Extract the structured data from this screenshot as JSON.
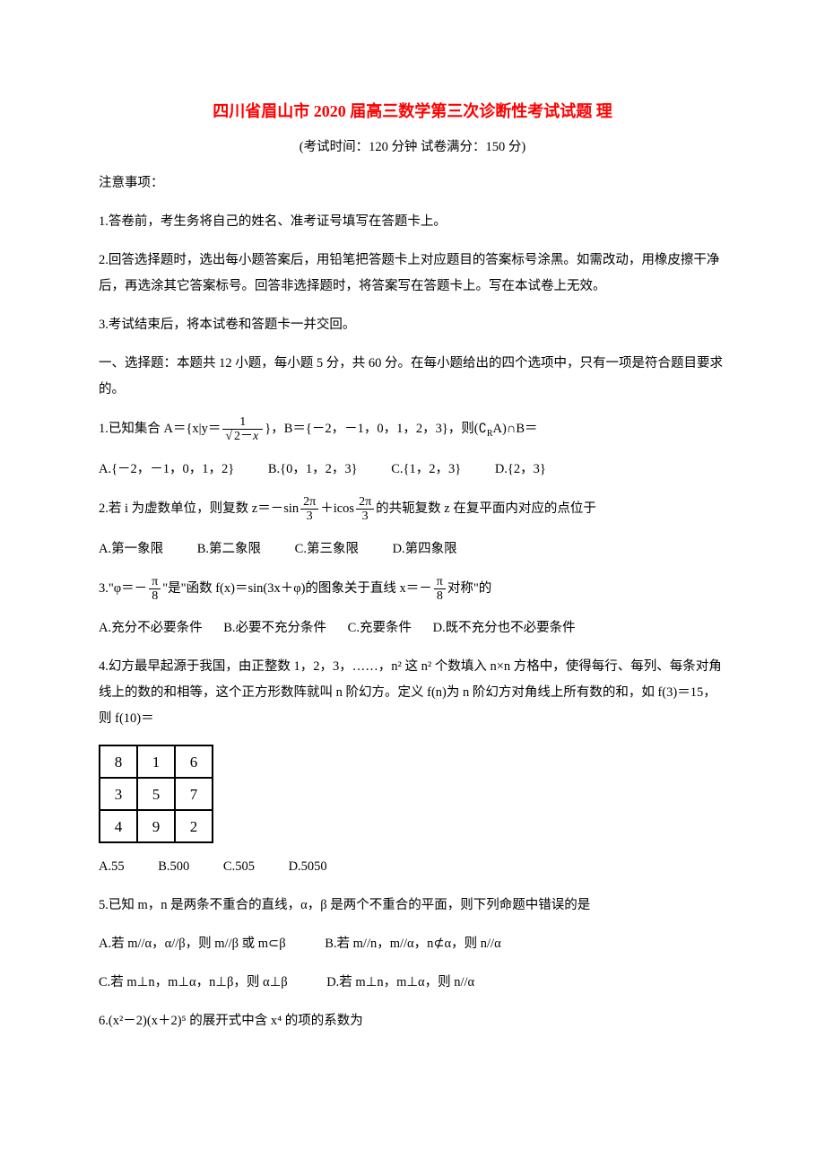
{
  "title": "四川省眉山市 2020 届高三数学第三次诊断性考试试题 理",
  "subtitle": "(考试时间：120 分钟  试卷满分：150 分)",
  "notice_header": "注意事项：",
  "notice1": "1.答卷前，考生务将自己的姓名、准考证号填写在答题卡上。",
  "notice2": "2.回答选择题时，选出每小题答案后，用铅笔把答题卡上对应题目的答案标号涂黑。如需改动，用橡皮擦干净后，再选涂其它答案标号。回答非选择题时，将答案写在答题卡上。写在本试卷上无效。",
  "notice3": "3.考试结束后，将本试卷和答题卡一并交回。",
  "section1": "一、选择题：本题共 12 小题，每小题 5 分，共 60 分。在每小题给出的四个选项中，只有一项是符合题目要求的。",
  "q1": {
    "stem_pre": "1.已知集合 A＝{x|y＝",
    "frac_num": "1",
    "frac_den_pre": "2－",
    "frac_den_var": "x",
    "stem_post": "}，B＝{－2，－1，0，1，2，3}，则(",
    "comp": "∁",
    "comp_sub": "R",
    "stem_post2": "A)∩B＝",
    "A": "A.{－2，－1，0，1，2}",
    "B": "B.{0，1，2，3}",
    "C": "C.{1，2，3}",
    "D": "D.{2，3}"
  },
  "q2": {
    "stem_pre": "2.若 i 为虚数单位，则复数 z＝－sin",
    "f1n": "2π",
    "f1d": "3",
    "mid": "＋icos",
    "f2n": "2π",
    "f2d": "3",
    "stem_post": "的共轭复数 z 在复平面内对应的点位于",
    "A": "A.第一象限",
    "B": "B.第二象限",
    "C": "C.第三象限",
    "D": "D.第四象限"
  },
  "q3": {
    "pre": "3.\"φ＝－",
    "f1n": "π",
    "f1d": "8",
    "mid": "\"是\"函数 f(x)＝sin(3x＋φ)的图象关于直线 x＝－",
    "f2n": "π",
    "f2d": "8",
    "post": "对称\"的",
    "A": "A.充分不必要条件",
    "B": "B.必要不充分条件",
    "C": "C.充要条件",
    "D": "D.既不充分也不必要条件"
  },
  "q4": {
    "text": "4.幻方最早起源于我国，由正整数 1，2，3，……，n² 这 n² 个数填入 n×n 方格中，使得每行、每列、每条对角线上的数的和相等，这个正方形数阵就叫 n 阶幻方。定义 f(n)为 n 阶幻方对角线上所有数的和，如 f(3)＝15，则 f(10)＝",
    "table": [
      [
        "8",
        "1",
        "6"
      ],
      [
        "3",
        "5",
        "7"
      ],
      [
        "4",
        "9",
        "2"
      ]
    ],
    "A": "A.55",
    "B": "B.500",
    "C": "C.505",
    "D": "D.5050"
  },
  "q5": {
    "stem": "5.已知 m，n 是两条不重合的直线，α，β 是两个不重合的平面，则下列命题中错误的是",
    "A": "A.若 m//α，α//β，则 m//β 或 m⊂β",
    "B": "B.若 m//n，m//α，n⊄α，则 n//α",
    "C": "C.若 m⊥n，m⊥α，n⊥β，则 α⊥β",
    "D": "D.若 m⊥n，m⊥α，则 n//α"
  },
  "q6": {
    "stem": "6.(x²－2)(x＋2)⁵ 的展开式中含 x⁴ 的项的系数为"
  }
}
